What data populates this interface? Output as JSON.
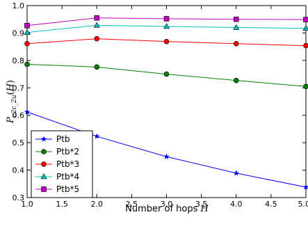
{
  "chart_data": {
    "type": "line",
    "x": [
      1.0,
      2.0,
      3.0,
      4.0,
      5.0
    ],
    "xlim": [
      1.0,
      5.0
    ],
    "ylim": [
      0.3,
      1.0
    ],
    "xticks": [
      "1.0",
      "1.5",
      "2.0",
      "2.5",
      "3.0",
      "3.5",
      "4.0",
      "4.5",
      "5.0"
    ],
    "yticks": [
      "0.3",
      "0.4",
      "0.5",
      "0.6",
      "0.7",
      "0.8",
      "0.9",
      "1.0"
    ],
    "xlabel_text": "Number of hops ",
    "xlabel_var": "H",
    "ylabel": "P_{c2c\\_2u}(H)",
    "grid": false,
    "legend_position": "lower-left",
    "series": [
      {
        "name": "Ptb",
        "marker": "star",
        "color": "#0000ff",
        "values": [
          0.612,
          0.523,
          0.449,
          0.389,
          0.338
        ]
      },
      {
        "name": "Ptb*2",
        "marker": "circle",
        "color": "#008000",
        "values": [
          0.786,
          0.776,
          0.75,
          0.727,
          0.705
        ]
      },
      {
        "name": "Ptb*3",
        "marker": "circle",
        "color": "#ff0000",
        "values": [
          0.861,
          0.879,
          0.869,
          0.861,
          0.854
        ]
      },
      {
        "name": "Ptb*4",
        "marker": "triangle",
        "color": "#00bfbf",
        "values": [
          0.902,
          0.928,
          0.924,
          0.92,
          0.917
        ]
      },
      {
        "name": "Ptb*5",
        "marker": "square",
        "color": "#bf00bf",
        "values": [
          0.927,
          0.955,
          0.952,
          0.95,
          0.949
        ]
      }
    ]
  }
}
